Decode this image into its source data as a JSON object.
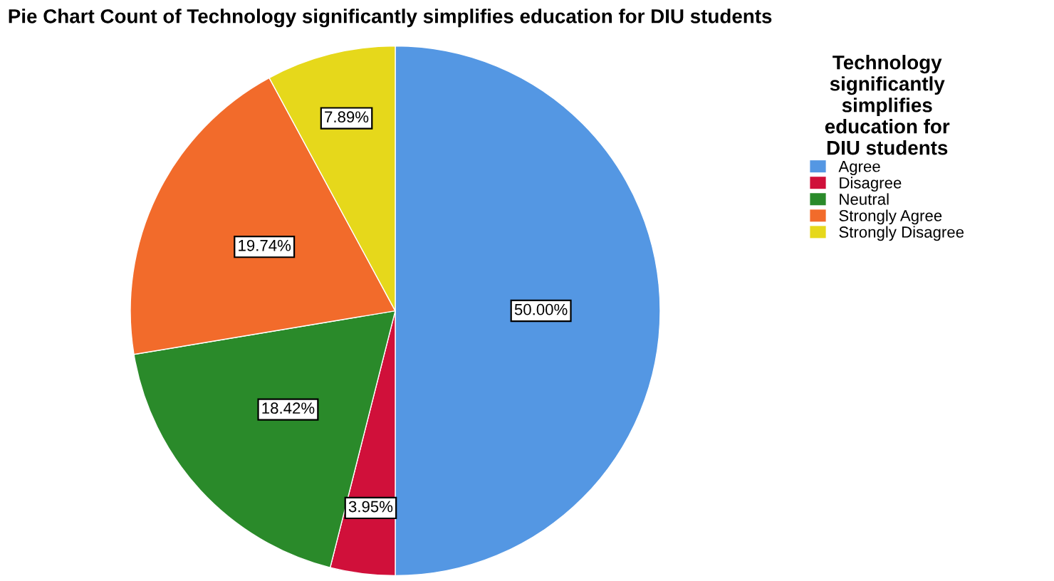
{
  "chart_data": {
    "type": "pie",
    "title": "Pie Chart Count of Technology significantly simplifies education for DIU students",
    "legend_title": "Technology\nsignificantly\nsimplifies\neducation for\nDIU students",
    "categories": [
      "Agree",
      "Disagree",
      "Neutral",
      "Strongly Agree",
      "Strongly Disagree"
    ],
    "values": [
      50.0,
      3.95,
      18.42,
      19.74,
      7.89
    ],
    "value_labels": [
      "50.00%",
      "3.95%",
      "18.42%",
      "19.74%",
      "7.89%"
    ],
    "colors": [
      "#5497e3",
      "#d0103a",
      "#2a8a2a",
      "#f26b2b",
      "#e6d81b"
    ],
    "legend": "right"
  }
}
